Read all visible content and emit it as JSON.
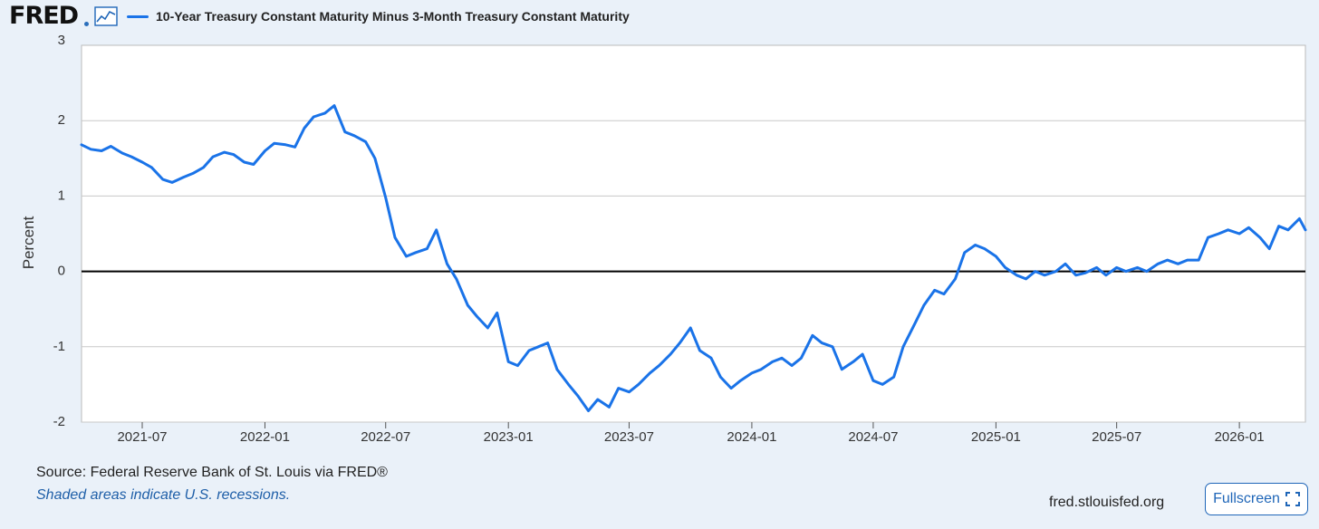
{
  "header": {
    "logo_text": "FRED",
    "series_title": "10-Year Treasury Constant Maturity Minus 3-Month Treasury Constant Maturity"
  },
  "footer": {
    "source": "Source: Federal Reserve Bank of St. Louis via FRED®",
    "recession_note": "Shaded areas indicate U.S. recessions.",
    "site": "fred.stlouisfed.org",
    "fullscreen_label": "Fullscreen"
  },
  "colors": {
    "line": "#1a73e8",
    "plot_bg": "#ffffff",
    "page_bg": "#eaf1f9",
    "grid": "#c8c8c8",
    "accent": "#1f66b8"
  },
  "icons": [
    "graph-icon",
    "fullscreen-icon"
  ],
  "chart_data": {
    "type": "line",
    "title": "10-Year Treasury Constant Maturity Minus 3-Month Treasury Constant Maturity",
    "xlabel": "",
    "ylabel": "Percent",
    "ylim": [
      -2,
      3
    ],
    "xlim": [
      "2021-04-01",
      "2026-04-10"
    ],
    "grid": true,
    "zero_line": true,
    "yticks": [
      3,
      2,
      1,
      0,
      -1,
      -2
    ],
    "ytick_labels": [
      "3",
      "2",
      "1",
      "0",
      "-1",
      "-2"
    ],
    "xticks": [
      "2021-07",
      "2022-01",
      "2022-07",
      "2023-01",
      "2023-07",
      "2024-01",
      "2024-07",
      "2025-01",
      "2025-07",
      "2026-01"
    ],
    "series": [
      {
        "name": "10-Year Treasury Constant Maturity Minus 3-Month Treasury Constant Maturity",
        "x": [
          "2021-04-01",
          "2021-04-15",
          "2021-05-01",
          "2021-05-15",
          "2021-06-01",
          "2021-06-15",
          "2021-07-01",
          "2021-07-15",
          "2021-08-01",
          "2021-08-15",
          "2021-09-01",
          "2021-09-15",
          "2021-10-01",
          "2021-10-15",
          "2021-11-01",
          "2021-11-15",
          "2021-12-01",
          "2021-12-15",
          "2022-01-01",
          "2022-01-15",
          "2022-02-01",
          "2022-02-15",
          "2022-03-01",
          "2022-03-15",
          "2022-04-01",
          "2022-04-15",
          "2022-05-01",
          "2022-05-15",
          "2022-06-01",
          "2022-06-15",
          "2022-07-01",
          "2022-07-15",
          "2022-08-01",
          "2022-08-15",
          "2022-09-01",
          "2022-09-15",
          "2022-10-01",
          "2022-10-15",
          "2022-11-01",
          "2022-11-15",
          "2022-12-01",
          "2022-12-15",
          "2023-01-01",
          "2023-01-15",
          "2023-02-01",
          "2023-02-15",
          "2023-03-01",
          "2023-03-15",
          "2023-04-01",
          "2023-04-15",
          "2023-05-01",
          "2023-05-15",
          "2023-06-01",
          "2023-06-15",
          "2023-07-01",
          "2023-07-15",
          "2023-08-01",
          "2023-08-15",
          "2023-09-01",
          "2023-09-15",
          "2023-10-01",
          "2023-10-15",
          "2023-11-01",
          "2023-11-15",
          "2023-12-01",
          "2023-12-15",
          "2024-01-01",
          "2024-01-15",
          "2024-02-01",
          "2024-02-15",
          "2024-03-01",
          "2024-03-15",
          "2024-04-01",
          "2024-04-15",
          "2024-05-01",
          "2024-05-15",
          "2024-06-01",
          "2024-06-15",
          "2024-07-01",
          "2024-07-15",
          "2024-08-01",
          "2024-08-15",
          "2024-09-01",
          "2024-09-15",
          "2024-10-01",
          "2024-10-15",
          "2024-11-01",
          "2024-11-15",
          "2024-12-01",
          "2024-12-15",
          "2025-01-01",
          "2025-01-15",
          "2025-02-01",
          "2025-02-15",
          "2025-03-01",
          "2025-03-15",
          "2025-04-01",
          "2025-04-15",
          "2025-05-01",
          "2025-05-15",
          "2025-06-01",
          "2025-06-15",
          "2025-07-01",
          "2025-07-15",
          "2025-08-01",
          "2025-08-15",
          "2025-09-01",
          "2025-09-15",
          "2025-10-01",
          "2025-10-15",
          "2025-11-01",
          "2025-11-15",
          "2025-12-01",
          "2025-12-15",
          "2026-01-01",
          "2026-01-15",
          "2026-02-01",
          "2026-02-15",
          "2026-03-01",
          "2026-03-15",
          "2026-04-01",
          "2026-04-10"
        ],
        "values": [
          1.68,
          1.62,
          1.6,
          1.66,
          1.57,
          1.52,
          1.45,
          1.38,
          1.22,
          1.18,
          1.25,
          1.3,
          1.38,
          1.52,
          1.58,
          1.55,
          1.45,
          1.42,
          1.6,
          1.7,
          1.68,
          1.65,
          1.9,
          2.05,
          2.1,
          2.2,
          1.85,
          1.8,
          1.72,
          1.5,
          0.98,
          0.45,
          0.2,
          0.25,
          0.3,
          0.55,
          0.1,
          -0.1,
          -0.45,
          -0.6,
          -0.75,
          -0.55,
          -1.2,
          -1.25,
          -1.05,
          -1.0,
          -0.95,
          -1.3,
          -1.5,
          -1.65,
          -1.85,
          -1.7,
          -1.8,
          -1.55,
          -1.6,
          -1.5,
          -1.35,
          -1.25,
          -1.1,
          -0.95,
          -0.75,
          -1.05,
          -1.15,
          -1.4,
          -1.55,
          -1.45,
          -1.35,
          -1.3,
          -1.2,
          -1.15,
          -1.25,
          -1.15,
          -0.85,
          -0.95,
          -1.0,
          -1.3,
          -1.2,
          -1.1,
          -1.45,
          -1.5,
          -1.4,
          -1.0,
          -0.7,
          -0.45,
          -0.25,
          -0.3,
          -0.1,
          0.25,
          0.35,
          0.3,
          0.2,
          0.05,
          -0.05,
          -0.1,
          0.0,
          -0.05,
          0.0,
          0.1,
          -0.05,
          -0.02,
          0.05,
          -0.05,
          0.05,
          0.0,
          0.05,
          0.0,
          0.1,
          0.15,
          0.1,
          0.15,
          0.15,
          0.45,
          0.5,
          0.55,
          0.5,
          0.58,
          0.45,
          0.3,
          0.6,
          0.55,
          0.7,
          0.55
        ]
      }
    ]
  }
}
